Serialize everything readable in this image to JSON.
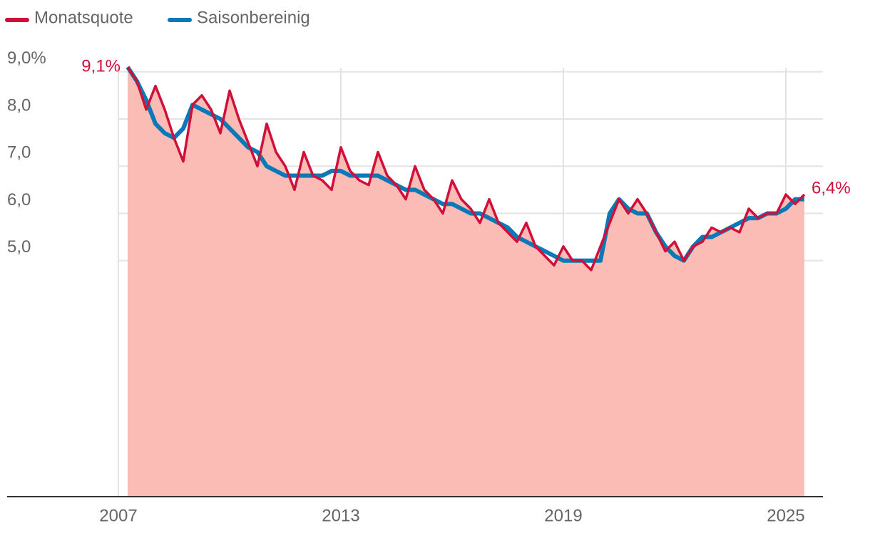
{
  "chart_data": {
    "type": "line",
    "x": [
      2007.25,
      2007.5,
      2007.75,
      2008,
      2008.25,
      2008.5,
      2008.75,
      2009,
      2009.25,
      2009.5,
      2009.75,
      2010,
      2010.25,
      2010.5,
      2010.75,
      2011,
      2011.25,
      2011.5,
      2011.75,
      2012,
      2012.25,
      2012.5,
      2012.75,
      2013,
      2013.25,
      2013.5,
      2013.75,
      2014,
      2014.25,
      2014.5,
      2014.75,
      2015,
      2015.25,
      2015.5,
      2015.75,
      2016,
      2016.25,
      2016.5,
      2016.75,
      2017,
      2017.25,
      2017.5,
      2017.75,
      2018,
      2018.25,
      2018.5,
      2018.75,
      2019,
      2019.25,
      2019.5,
      2019.75,
      2020,
      2020.25,
      2020.5,
      2020.75,
      2021,
      2021.25,
      2021.5,
      2021.75,
      2022,
      2022.25,
      2022.5,
      2022.75,
      2023,
      2023.25,
      2023.5,
      2023.75,
      2024,
      2024.25,
      2024.5,
      2024.75,
      2025,
      2025.25,
      2025.5
    ],
    "series": [
      {
        "name": "Monatsquote",
        "color": "#d0103a",
        "area_color": "#fbbcb6",
        "values": [
          9.1,
          8.8,
          8.2,
          8.7,
          8.2,
          7.6,
          7.1,
          8.3,
          8.5,
          8.2,
          7.7,
          8.6,
          8.0,
          7.5,
          7.0,
          7.9,
          7.3,
          7.0,
          6.5,
          7.3,
          6.8,
          6.7,
          6.5,
          7.4,
          6.9,
          6.7,
          6.6,
          7.3,
          6.8,
          6.6,
          6.3,
          7.0,
          6.5,
          6.3,
          6.0,
          6.7,
          6.3,
          6.1,
          5.8,
          6.3,
          5.8,
          5.6,
          5.4,
          5.8,
          5.3,
          5.1,
          4.9,
          5.3,
          5.0,
          5.0,
          4.8,
          5.3,
          5.8,
          6.3,
          6.0,
          6.3,
          6.0,
          5.6,
          5.2,
          5.4,
          5.0,
          5.3,
          5.4,
          5.7,
          5.6,
          5.7,
          5.6,
          6.1,
          5.9,
          6.0,
          6.0,
          6.4,
          6.2,
          6.4
        ]
      },
      {
        "name": "Saisonbereinig",
        "color": "#0a79b8",
        "values": [
          9.1,
          8.8,
          8.4,
          7.9,
          7.7,
          7.6,
          7.8,
          8.3,
          8.2,
          8.1,
          8.0,
          7.8,
          7.6,
          7.4,
          7.3,
          7.0,
          6.9,
          6.8,
          6.8,
          6.8,
          6.8,
          6.8,
          6.9,
          6.9,
          6.8,
          6.8,
          6.8,
          6.8,
          6.7,
          6.6,
          6.5,
          6.5,
          6.4,
          6.3,
          6.2,
          6.2,
          6.1,
          6.0,
          6.0,
          5.9,
          5.8,
          5.7,
          5.5,
          5.4,
          5.3,
          5.2,
          5.1,
          5.0,
          5.0,
          5.0,
          5.0,
          5.0,
          6.0,
          6.3,
          6.1,
          6.0,
          6.0,
          5.6,
          5.3,
          5.1,
          5.0,
          5.3,
          5.5,
          5.5,
          5.6,
          5.7,
          5.8,
          5.9,
          5.9,
          6.0,
          6.0,
          6.1,
          6.3,
          6.3
        ]
      }
    ],
    "annotations": [
      "9,1%",
      "6,4%"
    ],
    "xlim": [
      2004,
      2026
    ],
    "xticks": [
      2007,
      2013,
      2019,
      2025
    ],
    "ylim": [
      0,
      9.2
    ],
    "yticks": [
      {
        "value": 5,
        "label": "5,0"
      },
      {
        "value": 6,
        "label": "6,0"
      },
      {
        "value": 7,
        "label": "7,0"
      },
      {
        "value": 8,
        "label": "8,0"
      },
      {
        "value": 9,
        "label": "9,0%"
      }
    ],
    "grid": true
  }
}
